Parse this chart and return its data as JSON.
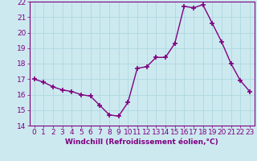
{
  "x": [
    0,
    1,
    2,
    3,
    4,
    5,
    6,
    7,
    8,
    9,
    10,
    11,
    12,
    13,
    14,
    15,
    16,
    17,
    18,
    19,
    20,
    21,
    22,
    23
  ],
  "y": [
    17.0,
    16.8,
    16.5,
    16.3,
    16.2,
    16.0,
    15.9,
    15.3,
    14.7,
    14.6,
    15.5,
    17.7,
    17.8,
    18.4,
    18.4,
    19.3,
    21.7,
    21.6,
    21.8,
    20.6,
    19.4,
    18.0,
    16.9,
    16.2
  ],
  "line_color": "#800080",
  "marker": "+",
  "marker_size": 4,
  "marker_linewidth": 1.2,
  "line_width": 1.0,
  "xlabel": "Windchill (Refroidissement éolien,°C)",
  "ylabel": "",
  "xlim": [
    -0.5,
    23.5
  ],
  "ylim": [
    14,
    22
  ],
  "yticks": [
    14,
    15,
    16,
    17,
    18,
    19,
    20,
    21,
    22
  ],
  "xticks": [
    0,
    1,
    2,
    3,
    4,
    5,
    6,
    7,
    8,
    9,
    10,
    11,
    12,
    13,
    14,
    15,
    16,
    17,
    18,
    19,
    20,
    21,
    22,
    23
  ],
  "bg_color": "#cce9f0",
  "grid_color": "#b0d8e0",
  "tick_color": "#800080",
  "label_color": "#800080",
  "font_size": 6.5
}
